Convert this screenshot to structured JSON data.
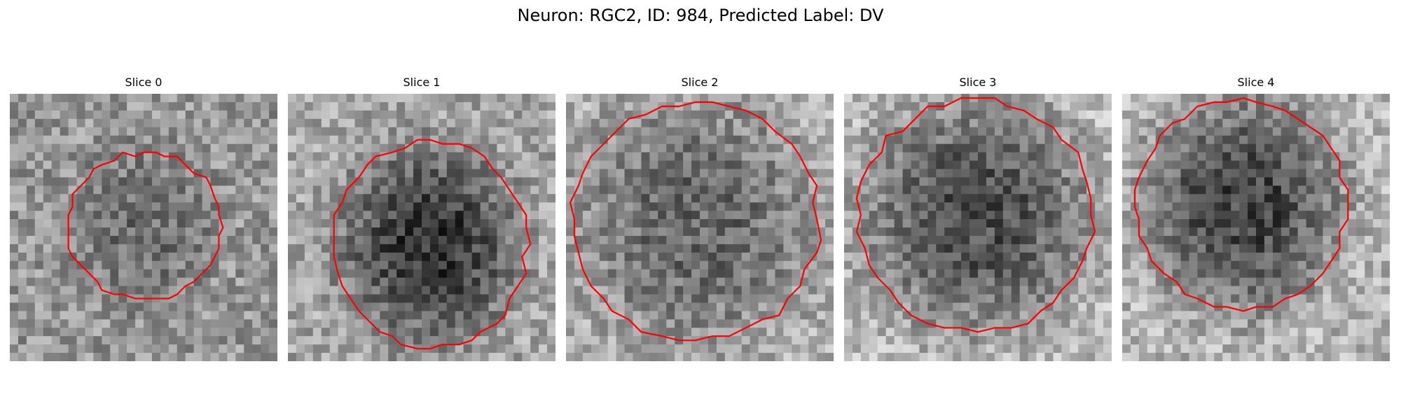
{
  "figure": {
    "suptitle": "Neuron: RGC2, ID: 984, Predicted Label: DV"
  },
  "panels": [
    {
      "title": "Slice 0",
      "bg_mean": 150,
      "center": [
        16.2,
        15.9
      ],
      "rx": 9.2,
      "ry": 8.8,
      "blob_gray": 110,
      "blob_rx": 8,
      "blob_ry": 9,
      "contour_color": "#ff0000"
    },
    {
      "title": "Slice 1",
      "bg_mean": 165,
      "center": [
        17.0,
        18.0
      ],
      "rx": 11.6,
      "ry": 12.3,
      "blob_gray": 55,
      "blob_rx": 10,
      "blob_ry": 11,
      "contour_color": "#ff0000"
    },
    {
      "title": "Slice 2",
      "bg_mean": 175,
      "center": [
        15.5,
        15.2
      ],
      "rx": 14.8,
      "ry": 14.3,
      "blob_gray": 105,
      "blob_rx": 13.5,
      "blob_ry": 13.5,
      "contour_color": "#ff0000"
    },
    {
      "title": "Slice 3",
      "bg_mean": 185,
      "center": [
        15.8,
        14.5
      ],
      "rx": 14.1,
      "ry": 13.9,
      "blob_gray": 80,
      "blob_rx": 13,
      "blob_ry": 13,
      "contour_color": "#ff0000"
    },
    {
      "title": "Slice 4",
      "bg_mean": 180,
      "center": [
        14.3,
        13.3
      ],
      "rx": 12.6,
      "ry": 12.6,
      "blob_gray": 70,
      "blob_rx": 11,
      "blob_ry": 12,
      "contour_color": "#ff0000"
    }
  ],
  "image": {
    "grid_size": 32,
    "colormap": "gray"
  }
}
